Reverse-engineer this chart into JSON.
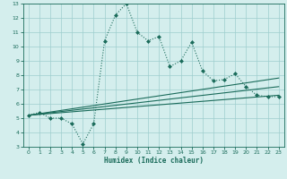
{
  "xlabel": "Humidex (Indice chaleur)",
  "bg_color": "#d4eeed",
  "grid_color": "#9ecece",
  "line_color": "#1a6b5a",
  "xlim": [
    -0.5,
    23.5
  ],
  "ylim": [
    3,
    13
  ],
  "xticks": [
    0,
    1,
    2,
    3,
    4,
    5,
    6,
    7,
    8,
    9,
    10,
    11,
    12,
    13,
    14,
    15,
    16,
    17,
    18,
    19,
    20,
    21,
    22,
    23
  ],
  "yticks": [
    3,
    4,
    5,
    6,
    7,
    8,
    9,
    10,
    11,
    12,
    13
  ],
  "main_x": [
    0,
    1,
    2,
    3,
    4,
    5,
    6,
    7,
    8,
    9,
    10,
    11,
    12,
    13,
    14,
    15,
    16,
    17,
    18,
    19,
    20,
    21,
    22,
    23
  ],
  "main_y": [
    5.2,
    5.4,
    5.0,
    5.0,
    4.6,
    3.2,
    4.6,
    10.4,
    12.2,
    13.0,
    11.0,
    10.4,
    10.7,
    8.6,
    9.0,
    10.3,
    8.3,
    7.6,
    7.7,
    8.1,
    7.2,
    6.6,
    6.5,
    6.5
  ],
  "line1_x": [
    0,
    23
  ],
  "line1_y": [
    5.2,
    6.6
  ],
  "line2_x": [
    0,
    23
  ],
  "line2_y": [
    5.2,
    7.2
  ],
  "line3_x": [
    0,
    23
  ],
  "line3_y": [
    5.2,
    7.8
  ]
}
